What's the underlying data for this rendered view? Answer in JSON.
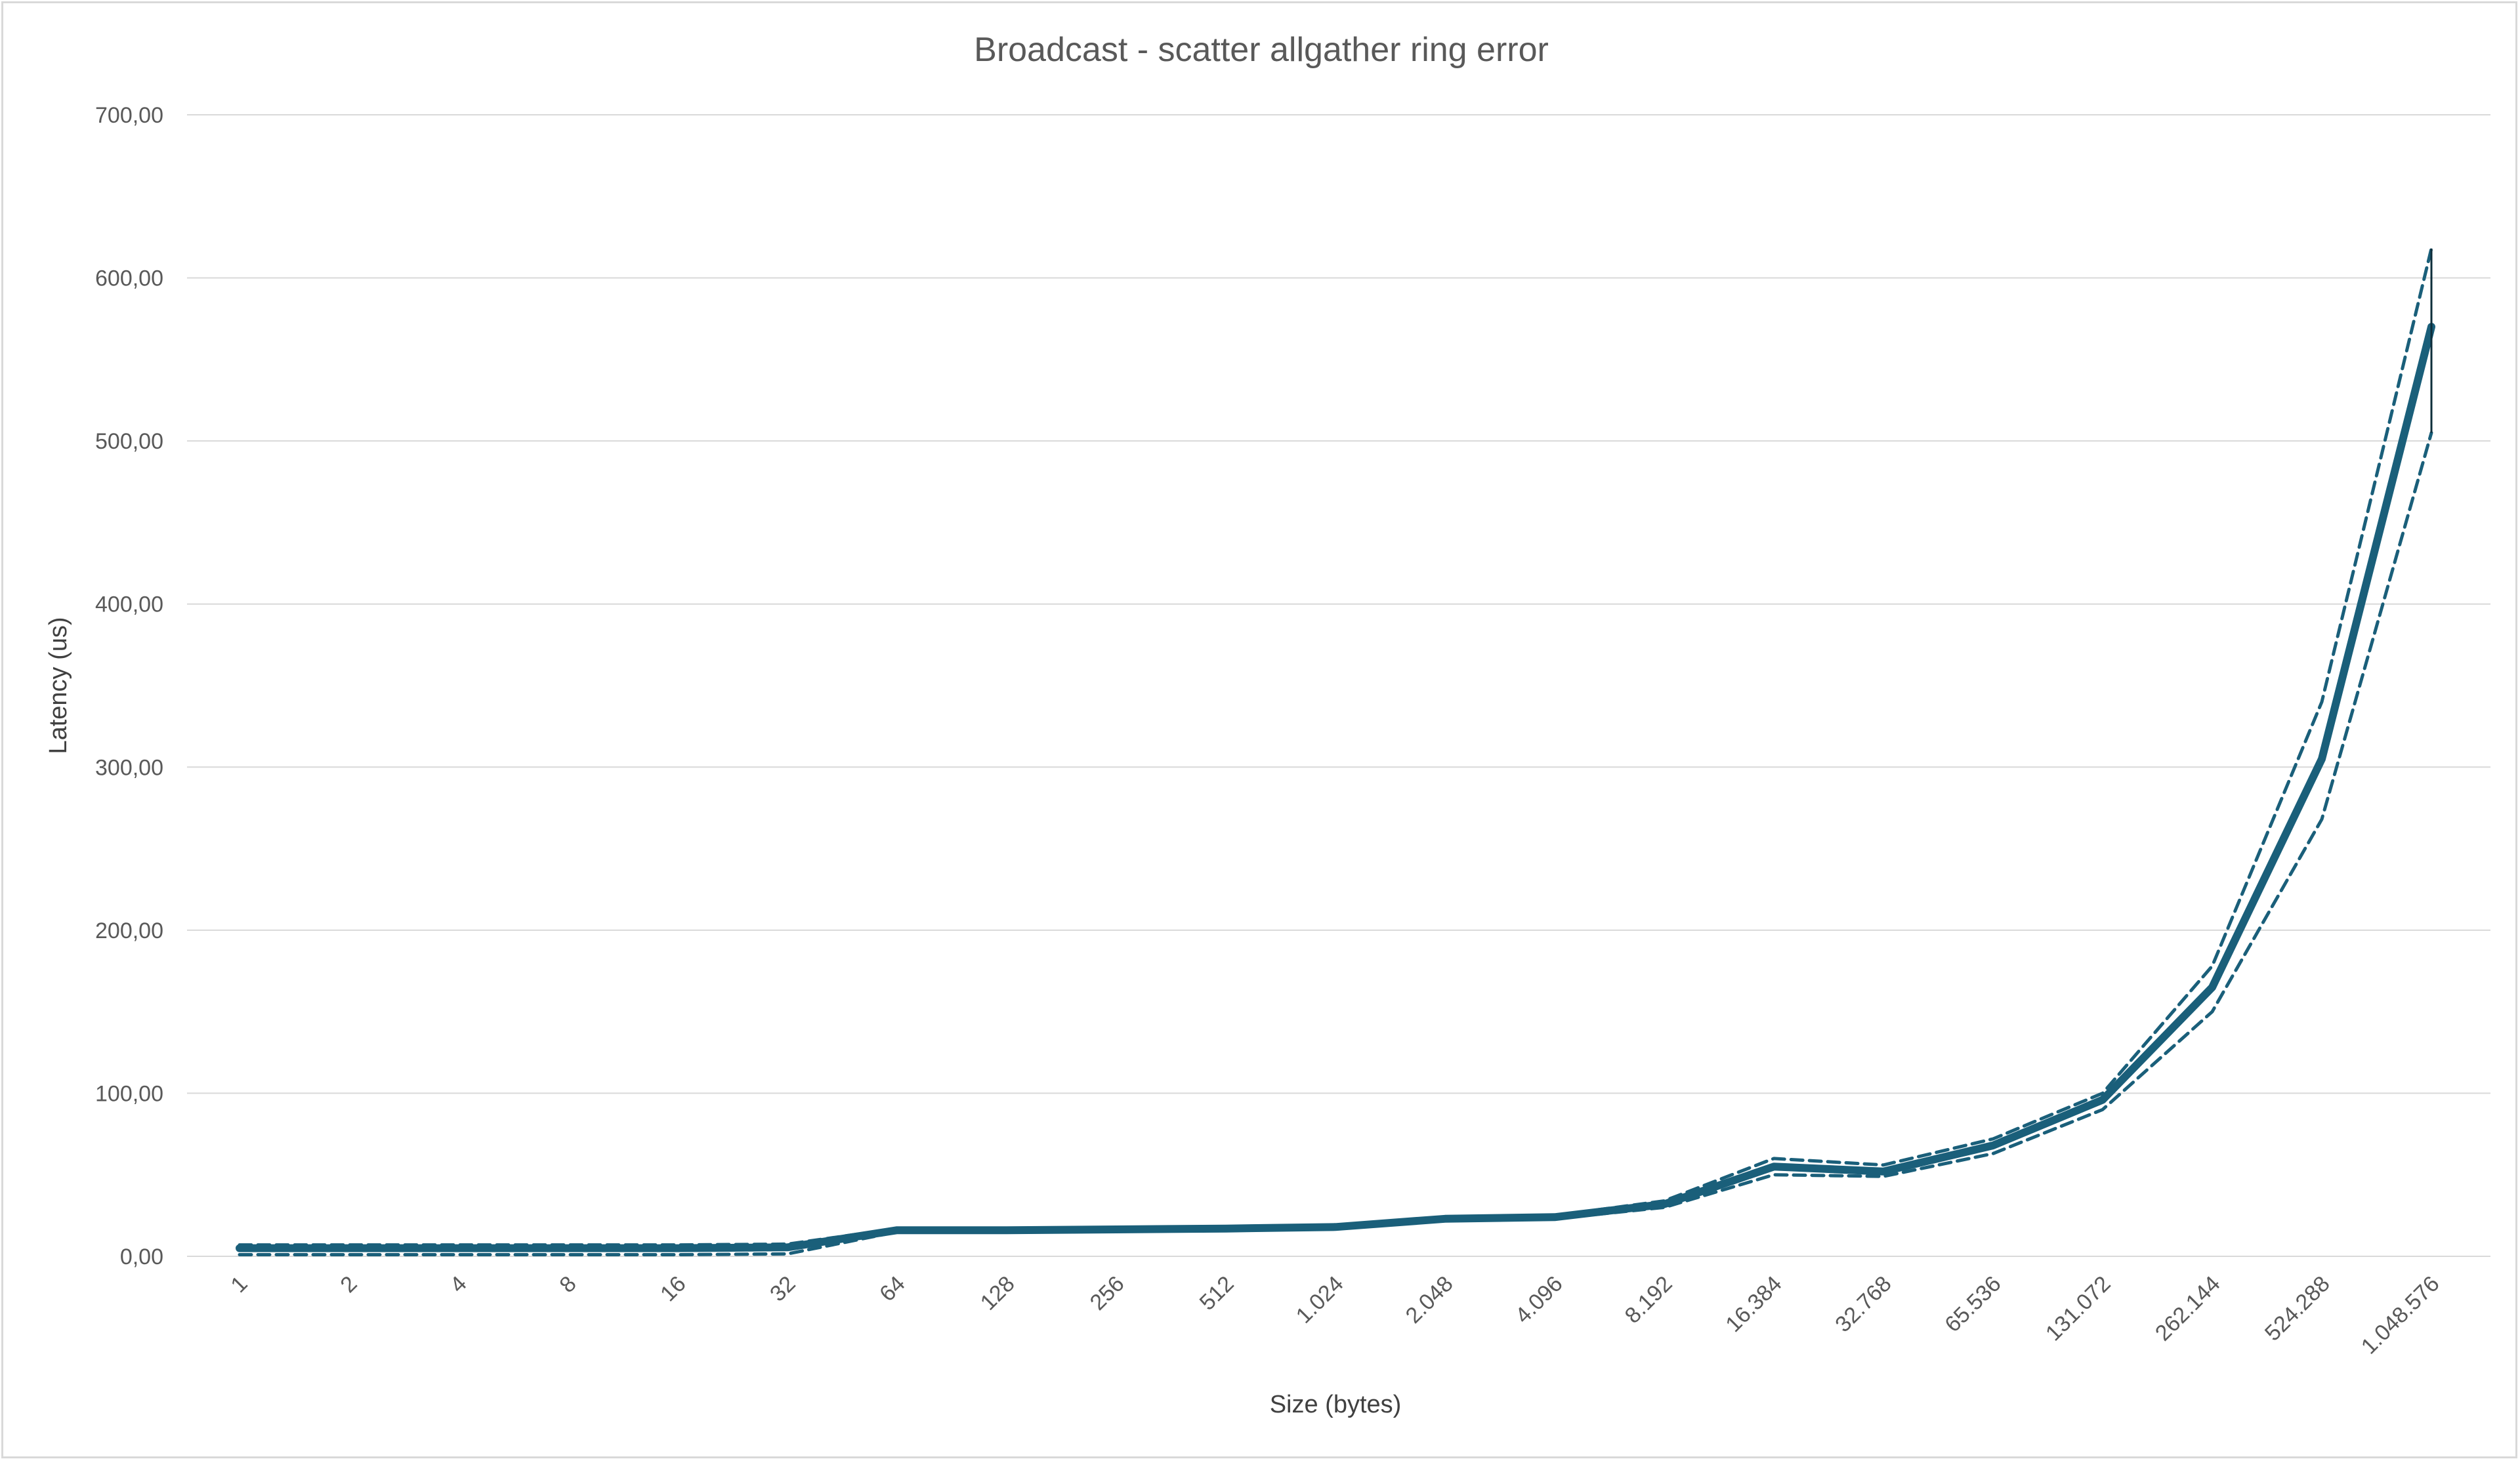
{
  "chart_data": {
    "type": "line",
    "title": "Broadcast - scatter allgather ring error",
    "xlabel": "Size (bytes)",
    "ylabel": "Latency (us)",
    "ylim": [
      0,
      700
    ],
    "yticks": [
      "0,00",
      "100,00",
      "200,00",
      "300,00",
      "400,00",
      "500,00",
      "600,00",
      "700,00"
    ],
    "categories": [
      "1",
      "2",
      "4",
      "8",
      "16",
      "32",
      "64",
      "128",
      "256",
      "512",
      "1.024",
      "2.048",
      "4.096",
      "8.192",
      "16.384",
      "32.768",
      "65.536",
      "131.072",
      "262.144",
      "524.288",
      "1.048.576"
    ],
    "grid": true,
    "legend": "none",
    "series": [
      {
        "role": "mean",
        "color": "#1a5f7a",
        "style": "solid",
        "values": [
          5,
          5,
          5,
          5,
          5,
          5.5,
          16,
          16,
          16.5,
          17,
          18,
          23,
          24,
          32,
          55,
          52,
          68,
          96,
          165,
          305,
          570
        ]
      },
      {
        "role": "upper-bound",
        "color": "#1a5f7a",
        "style": "dashed",
        "values": [
          7,
          7,
          7,
          7,
          7,
          7.5,
          17,
          17,
          17.5,
          18,
          19,
          24,
          25,
          34,
          60,
          56,
          72,
          100,
          178,
          340,
          618
        ]
      },
      {
        "role": "lower-bound",
        "color": "#1a5f7a",
        "style": "dashed",
        "values": [
          1,
          1,
          1,
          1,
          1,
          1.5,
          15,
          15,
          15.5,
          16,
          17,
          22,
          23,
          30,
          50,
          49,
          63,
          90,
          150,
          268,
          505
        ]
      }
    ],
    "error_bar_at_last_point": {
      "low": 505,
      "high": 618
    }
  }
}
